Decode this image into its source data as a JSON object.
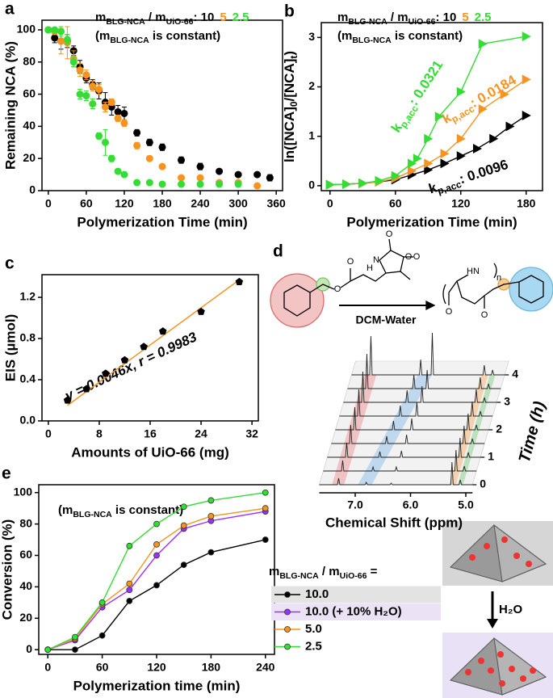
{
  "chart_data": [
    {
      "type": "scatter",
      "label": "a",
      "marker": "circle",
      "connect": false,
      "xlabel": "Polymerization Time (min)",
      "ylabel": "Remaining NCA (%)",
      "annotation": [
        "m",
        "BLG-NCA",
        " / m",
        "UiO-66",
        ": "
      ],
      "annotation2": [
        "(m",
        "BLG-NCA",
        " is constant)"
      ],
      "xlim": [
        -10,
        370
      ],
      "xticks": [
        0,
        60,
        120,
        180,
        240,
        300,
        360
      ],
      "ylim": [
        0,
        106
      ],
      "yticks": [
        0,
        20,
        40,
        60,
        80,
        100
      ],
      "series": [
        {
          "name": "10",
          "color": "#000000",
          "x": [
            0,
            10,
            20,
            30,
            40,
            50,
            60,
            70,
            80,
            90,
            100,
            110,
            120,
            140,
            160,
            180,
            210,
            240,
            270,
            300,
            330,
            350
          ],
          "values": [
            100,
            95,
            93,
            93,
            87,
            77,
            70,
            66,
            62,
            55,
            52,
            49,
            48,
            36,
            30,
            27,
            19,
            15,
            12,
            10,
            10,
            8
          ],
          "errors": [
            0,
            3,
            5,
            4,
            3,
            4,
            3,
            3,
            5,
            6,
            5,
            4,
            4,
            2,
            2,
            2,
            2,
            2,
            1,
            1,
            1,
            2
          ]
        },
        {
          "name": "5",
          "color": "#f7931e",
          "x": [
            0,
            10,
            20,
            30,
            40,
            50,
            60,
            70,
            80,
            90,
            100,
            110,
            120,
            140,
            160,
            180,
            210,
            240,
            270,
            300,
            330
          ],
          "values": [
            100,
            99,
            93,
            92,
            82,
            75,
            72,
            65,
            63,
            52,
            55,
            45,
            42,
            28,
            20,
            15,
            8,
            8,
            5,
            5,
            3
          ],
          "errors": [
            0,
            2,
            8,
            10,
            5,
            4,
            3,
            3,
            3,
            3,
            2,
            2,
            2,
            2,
            1,
            1,
            1,
            1,
            1,
            1,
            1
          ]
        },
        {
          "name": "2.5",
          "color": "#33dd33",
          "x": [
            0,
            10,
            20,
            30,
            40,
            50,
            60,
            70,
            80,
            90,
            100,
            110,
            120,
            140,
            160,
            180,
            210,
            240,
            270,
            300
          ],
          "values": [
            100,
            100,
            99,
            94,
            80,
            60,
            59,
            54,
            34,
            30,
            20,
            12,
            10,
            5,
            5,
            4,
            4,
            4,
            4,
            4
          ],
          "errors": [
            0,
            1,
            3,
            3,
            3,
            3,
            3,
            3,
            2,
            8,
            2,
            1,
            1,
            1,
            1,
            1,
            1,
            1,
            1,
            1
          ]
        }
      ]
    },
    {
      "type": "scatter",
      "label": "b",
      "marker": "triangle",
      "connect": true,
      "xlabel": "Polymerization Time (min)",
      "ylabel": [
        "ln([NCA]",
        "0",
        "/[NCA]",
        "t",
        ")"
      ],
      "annotation": [
        "m",
        "BLG-NCA",
        " / m",
        "UiO-66",
        ": "
      ],
      "annotation2": [
        "(m",
        "BLG-NCA",
        " is constant)"
      ],
      "xlim": [
        -8,
        195
      ],
      "xticks": [
        0,
        60,
        120,
        180
      ],
      "ylim": [
        -0.1,
        3.3
      ],
      "yticks": [
        0,
        1,
        2,
        3
      ],
      "series": [
        {
          "name": "10",
          "color": "#000000",
          "k_label": [
            "k",
            "p,acc",
            ": "
          ],
          "k": 0.0096,
          "x": [
            0,
            15,
            30,
            45,
            60,
            75,
            90,
            105,
            120,
            135,
            150,
            165,
            180
          ],
          "values": [
            0.02,
            0.03,
            0.05,
            0.08,
            0.12,
            0.22,
            0.32,
            0.45,
            0.6,
            0.75,
            0.95,
            1.2,
            1.42
          ]
        },
        {
          "name": "5",
          "color": "#f7931e",
          "k_label": [
            "k",
            "p,acc",
            ": "
          ],
          "k": 0.0184,
          "x": [
            0,
            15,
            30,
            45,
            60,
            75,
            90,
            105,
            120,
            140,
            160,
            180
          ],
          "values": [
            0.02,
            0.03,
            0.05,
            0.08,
            0.15,
            0.3,
            0.45,
            0.65,
            0.95,
            1.55,
            1.85,
            2.15
          ]
        },
        {
          "name": "2.5",
          "color": "#33dd33",
          "k_label": [
            "k",
            "p,acc",
            ": "
          ],
          "k": 0.0321,
          "x": [
            0,
            15,
            30,
            45,
            60,
            75,
            80,
            90,
            100,
            120,
            140,
            180
          ],
          "values": [
            0.02,
            0.03,
            0.05,
            0.1,
            0.2,
            0.45,
            0.55,
            0.95,
            1.4,
            1.9,
            2.87,
            3.02
          ]
        }
      ]
    },
    {
      "type": "scatter",
      "label": "c",
      "marker": "pentagon",
      "connect": false,
      "xlabel": "Amounts of UiO-66 (mg)",
      "ylabel": "EIS (µmol)",
      "annotation": "y = 0.0046x, r = 0.9983",
      "xlim": [
        -1,
        33
      ],
      "xticks": [
        0,
        8,
        16,
        24,
        32
      ],
      "ylim": [
        0,
        1.42
      ],
      "yticks": [
        {
          "value": 0,
          "label": "0.0"
        },
        0.4,
        0.8,
        1.2
      ],
      "series": [
        {
          "color": "#000000",
          "x": [
            3,
            6,
            9,
            12,
            15,
            18,
            24,
            30
          ],
          "values": [
            0.2,
            0.31,
            0.46,
            0.59,
            0.72,
            0.87,
            1.06,
            1.35
          ]
        }
      ],
      "fit": {
        "color": "#f7931e",
        "x": [
          3,
          30
        ],
        "values": [
          0.15,
          1.37
        ]
      }
    },
    {
      "type": "line",
      "label": "e",
      "marker": "circle",
      "xlabel": "Polymerization time (min)",
      "ylabel": "Conversion (%)",
      "annotation": [
        "(m",
        "BLG-NCA",
        " is constant)"
      ],
      "legend_title": [
        "m",
        "BLG-NCA",
        " / m",
        "UiO-66",
        " ="
      ],
      "xlim": [
        -10,
        250
      ],
      "xticks": [
        0,
        60,
        120,
        180,
        240
      ],
      "ylim": [
        -3,
        105
      ],
      "yticks": [
        0,
        20,
        40,
        60,
        80,
        100
      ],
      "x": [
        0,
        30,
        60,
        90,
        120,
        150,
        180,
        240
      ],
      "series": [
        {
          "name": "10.0",
          "color": "#000000",
          "values": [
            0,
            0,
            9,
            31,
            41,
            54,
            62,
            70
          ]
        },
        {
          "name": "10.0 (+ 10% H₂O)",
          "color": "#9b30ff",
          "values": [
            0,
            6,
            27,
            38,
            60,
            77,
            82,
            88
          ]
        },
        {
          "name": "5.0",
          "color": "#f7931e",
          "values": [
            0,
            7,
            29,
            42,
            67,
            79,
            85,
            90
          ]
        },
        {
          "name": "2.5",
          "color": "#33dd33",
          "values": [
            0,
            8,
            30,
            66,
            80,
            91,
            95,
            100
          ]
        }
      ]
    }
  ],
  "panel_d": {
    "label": "d",
    "reagent": "DCM-Water",
    "atoms": [
      "O",
      "O",
      "O",
      "O",
      "O",
      "N",
      "H",
      "HN",
      "n",
      "O",
      "O"
    ],
    "xlabel": "Chemical Shift (ppm)",
    "xticks": [
      {
        "value": 7,
        "label": "7.0"
      },
      {
        "value": 6,
        "label": "6.0"
      },
      {
        "value": 5,
        "label": "5.0"
      }
    ],
    "ylabel": "Time (h)",
    "yticks": [
      0,
      1,
      2,
      3,
      4
    ],
    "water": "H₂O"
  }
}
